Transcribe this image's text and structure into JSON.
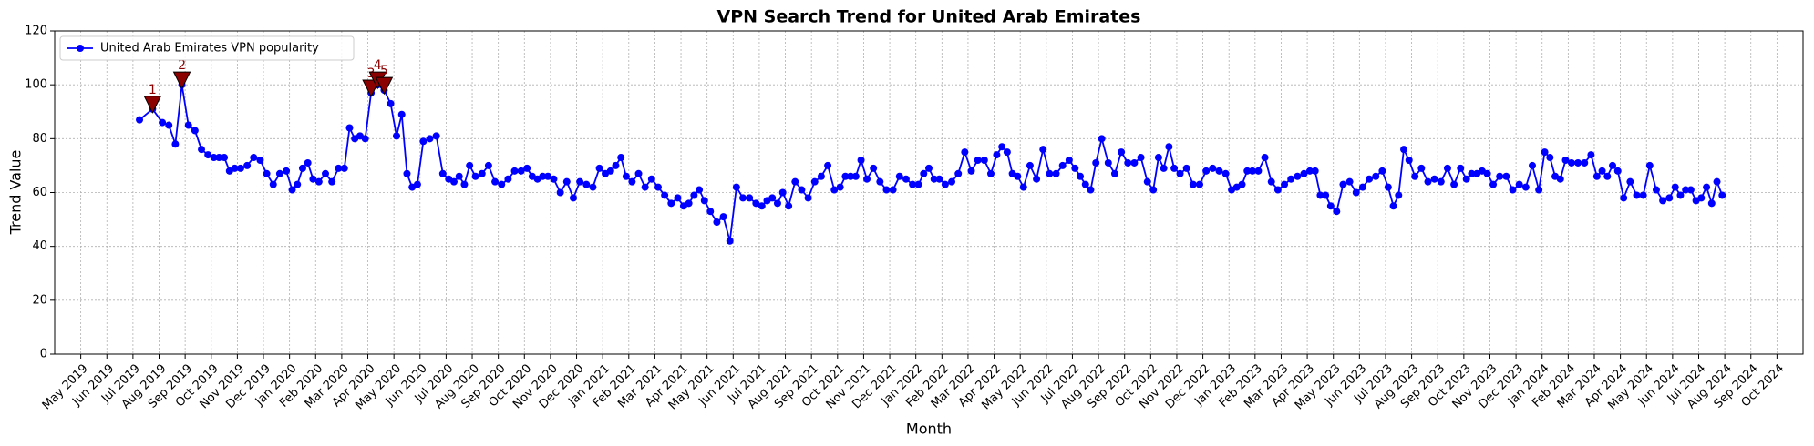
{
  "chart_data": {
    "type": "line",
    "title": "VPN Search Trend for United Arab Emirates",
    "xlabel": "Month",
    "ylabel": "Trend Value",
    "x": [
      "2019-07",
      "2019-07",
      "2019-08",
      "2019-08",
      "2019-08",
      "2019-08",
      "2019-09",
      "2019-09",
      "2019-09",
      "2019-09",
      "2019-10",
      "2019-10",
      "2019-10",
      "2019-10",
      "2019-10",
      "2019-11",
      "2019-11",
      "2019-11",
      "2019-11",
      "2019-12",
      "2019-12",
      "2019-12",
      "2019-12",
      "2020-01",
      "2020-01",
      "2020-01",
      "2020-01",
      "2020-01",
      "2020-02",
      "2020-02",
      "2020-02",
      "2020-02",
      "2020-03",
      "2020-03",
      "2020-03",
      "2020-03",
      "2020-03",
      "2020-04",
      "2020-04",
      "2020-04",
      "2020-04",
      "2020-05",
      "2020-05",
      "2020-05",
      "2020-05",
      "2020-05",
      "2020-06",
      "2020-06",
      "2020-06",
      "2020-06",
      "2020-07",
      "2020-07",
      "2020-07",
      "2020-07",
      "2020-07",
      "2020-08",
      "2020-08",
      "2020-08",
      "2020-08",
      "2020-09",
      "2020-09",
      "2020-09",
      "2020-09",
      "2020-10",
      "2020-10",
      "2020-10",
      "2020-10",
      "2020-10",
      "2020-11",
      "2020-11",
      "2020-11",
      "2020-11",
      "2020-12",
      "2020-12",
      "2020-12",
      "2020-12",
      "2021-01",
      "2021-01",
      "2021-01",
      "2021-01",
      "2021-01",
      "2021-02",
      "2021-02",
      "2021-02",
      "2021-02",
      "2021-03",
      "2021-03",
      "2021-03",
      "2021-03",
      "2021-04",
      "2021-04",
      "2021-04",
      "2021-04",
      "2021-04",
      "2021-05",
      "2021-05",
      "2021-05",
      "2021-05",
      "2021-06",
      "2021-06",
      "2021-06",
      "2021-06",
      "2021-07",
      "2021-07",
      "2021-07",
      "2021-07",
      "2021-07",
      "2021-08",
      "2021-08",
      "2021-08",
      "2021-08",
      "2021-09",
      "2021-09",
      "2021-09",
      "2021-09",
      "2021-10",
      "2021-10",
      "2021-10",
      "2021-10",
      "2021-10",
      "2021-11",
      "2021-11",
      "2021-11",
      "2021-11",
      "2021-12",
      "2021-12",
      "2021-12",
      "2021-12",
      "2022-01",
      "2022-01",
      "2022-01",
      "2022-01",
      "2022-01",
      "2022-02",
      "2022-02",
      "2022-02",
      "2022-02",
      "2022-03",
      "2022-03",
      "2022-03",
      "2022-03",
      "2022-04",
      "2022-04",
      "2022-04",
      "2022-04",
      "2022-04",
      "2022-05",
      "2022-05",
      "2022-05",
      "2022-05",
      "2022-06",
      "2022-06",
      "2022-06",
      "2022-06",
      "2022-07",
      "2022-07",
      "2022-07",
      "2022-07",
      "2022-07",
      "2022-08",
      "2022-08",
      "2022-08",
      "2022-08",
      "2022-09",
      "2022-09",
      "2022-09",
      "2022-09",
      "2022-10",
      "2022-10",
      "2022-10",
      "2022-10",
      "2022-10",
      "2022-11",
      "2022-11",
      "2022-11",
      "2022-11",
      "2022-12",
      "2022-12",
      "2022-12",
      "2022-12",
      "2023-01",
      "2023-01",
      "2023-01",
      "2023-01",
      "2023-01",
      "2023-02",
      "2023-02",
      "2023-02",
      "2023-02",
      "2023-03",
      "2023-03",
      "2023-03",
      "2023-03",
      "2023-04",
      "2023-04",
      "2023-04",
      "2023-04",
      "2023-04",
      "2023-05",
      "2023-05",
      "2023-05",
      "2023-05",
      "2023-06",
      "2023-06",
      "2023-06",
      "2023-06",
      "2023-07",
      "2023-07",
      "2023-07",
      "2023-07",
      "2023-07",
      "2023-08",
      "2023-08",
      "2023-08",
      "2023-08",
      "2023-09",
      "2023-09",
      "2023-09",
      "2023-09",
      "2023-10",
      "2023-10",
      "2023-10",
      "2023-10",
      "2023-10",
      "2023-11",
      "2023-11",
      "2023-11",
      "2023-11",
      "2023-12",
      "2023-12",
      "2023-12",
      "2023-12",
      "2024-01",
      "2024-01",
      "2024-01",
      "2024-01",
      "2024-01",
      "2024-02",
      "2024-02",
      "2024-02",
      "2024-02",
      "2024-03",
      "2024-03",
      "2024-03",
      "2024-03",
      "2024-03",
      "2024-04",
      "2024-04",
      "2024-04",
      "2024-04",
      "2024-05",
      "2024-05",
      "2024-05",
      "2024-05",
      "2024-06",
      "2024-06",
      "2024-06",
      "2024-06",
      "2024-06",
      "2024-07",
      "2024-07",
      "2024-07",
      "2024-07",
      "2024-07"
    ],
    "series": [
      {
        "name": "United Arab Emirates VPN popularity",
        "color": "#0000ff",
        "values": [
          87,
          91,
          86,
          85,
          78,
          100,
          85,
          83,
          76,
          74,
          73,
          73,
          73,
          68,
          69,
          69,
          70,
          73,
          72,
          67,
          63,
          67,
          68,
          61,
          63,
          69,
          71,
          65,
          64,
          67,
          64,
          69,
          69,
          84,
          80,
          81,
          80,
          97,
          100,
          98,
          93,
          81,
          89,
          67,
          62,
          63,
          79,
          80,
          81,
          67,
          65,
          64,
          66,
          63,
          70,
          66,
          67,
          70,
          64,
          63,
          65,
          68,
          68,
          69,
          66,
          65,
          66,
          66,
          65,
          60,
          64,
          58,
          64,
          63,
          62,
          69,
          67,
          68,
          70,
          73,
          66,
          64,
          67,
          62,
          65,
          62,
          59,
          56,
          58,
          55,
          56,
          59,
          61,
          57,
          53,
          49,
          51,
          42,
          62,
          58,
          58,
          56,
          55,
          57,
          58,
          56,
          60,
          55,
          64,
          61,
          58,
          64,
          66,
          70,
          61,
          62,
          66,
          66,
          66,
          72,
          65,
          69,
          64,
          61,
          61,
          66,
          65,
          63,
          63,
          67,
          69,
          65,
          65,
          63,
          64,
          67,
          75,
          68,
          72,
          72,
          67,
          74,
          77,
          75,
          67,
          66,
          62,
          70,
          65,
          76,
          67,
          67,
          70,
          72,
          69,
          66,
          63,
          61,
          71,
          80,
          71,
          67,
          75,
          71,
          71,
          73,
          64,
          61,
          73,
          69,
          77,
          69,
          67,
          69,
          63,
          63,
          68,
          69,
          68,
          67,
          61,
          62,
          63,
          68,
          68,
          68,
          73,
          64,
          61,
          63,
          65,
          66,
          67,
          68,
          68,
          59,
          59,
          55,
          53,
          63,
          64,
          60,
          62,
          65,
          66,
          68,
          62,
          55,
          59,
          76,
          72,
          66,
          69,
          64,
          65,
          64,
          69,
          63,
          69,
          65,
          67,
          67,
          68,
          67,
          63,
          66,
          66,
          61,
          63,
          62,
          70,
          61,
          75,
          73,
          66,
          65,
          72,
          71,
          71,
          71,
          74,
          66,
          68,
          66,
          70,
          68,
          58,
          64,
          59,
          59,
          70,
          61,
          57,
          58,
          62,
          59,
          61,
          61,
          57,
          58,
          62,
          56,
          64,
          59
        ]
      }
    ],
    "annotations": [
      {
        "label": "1",
        "x": "2019-07",
        "y": 91
      },
      {
        "label": "2",
        "x": "2019-08",
        "y": 100
      },
      {
        "label": "3",
        "x": "2020-04",
        "y": 97
      },
      {
        "label": "4",
        "x": "2020-04",
        "y": 100
      },
      {
        "label": "5",
        "x": "2020-04",
        "y": 98
      }
    ],
    "annotation_color": "#8b0000",
    "xlim": [
      "2019-04",
      "2024-11"
    ],
    "xticks": [
      {
        "value": "2019-05",
        "label": "May 2019"
      },
      {
        "value": "2019-06",
        "label": "Jun 2019"
      },
      {
        "value": "2019-07",
        "label": "Jul 2019"
      },
      {
        "value": "2019-08",
        "label": "Aug 2019"
      },
      {
        "value": "2019-09",
        "label": "Sep 2019"
      },
      {
        "value": "2019-10",
        "label": "Oct 2019"
      },
      {
        "value": "2019-11",
        "label": "Nov 2019"
      },
      {
        "value": "2019-12",
        "label": "Dec 2019"
      },
      {
        "value": "2020-01",
        "label": "Jan 2020"
      },
      {
        "value": "2020-02",
        "label": "Feb 2020"
      },
      {
        "value": "2020-03",
        "label": "Mar 2020"
      },
      {
        "value": "2020-04",
        "label": "Apr 2020"
      },
      {
        "value": "2020-05",
        "label": "May 2020"
      },
      {
        "value": "2020-06",
        "label": "Jun 2020"
      },
      {
        "value": "2020-07",
        "label": "Jul 2020"
      },
      {
        "value": "2020-08",
        "label": "Aug 2020"
      },
      {
        "value": "2020-09",
        "label": "Sep 2020"
      },
      {
        "value": "2020-10",
        "label": "Oct 2020"
      },
      {
        "value": "2020-11",
        "label": "Nov 2020"
      },
      {
        "value": "2020-12",
        "label": "Dec 2020"
      },
      {
        "value": "2021-01",
        "label": "Jan 2021"
      },
      {
        "value": "2021-02",
        "label": "Feb 2021"
      },
      {
        "value": "2021-03",
        "label": "Mar 2021"
      },
      {
        "value": "2021-04",
        "label": "Apr 2021"
      },
      {
        "value": "2021-05",
        "label": "May 2021"
      },
      {
        "value": "2021-06",
        "label": "Jun 2021"
      },
      {
        "value": "2021-07",
        "label": "Jul 2021"
      },
      {
        "value": "2021-08",
        "label": "Aug 2021"
      },
      {
        "value": "2021-09",
        "label": "Sep 2021"
      },
      {
        "value": "2021-10",
        "label": "Oct 2021"
      },
      {
        "value": "2021-11",
        "label": "Nov 2021"
      },
      {
        "value": "2021-12",
        "label": "Dec 2021"
      },
      {
        "value": "2022-01",
        "label": "Jan 2022"
      },
      {
        "value": "2022-02",
        "label": "Feb 2022"
      },
      {
        "value": "2022-03",
        "label": "Mar 2022"
      },
      {
        "value": "2022-04",
        "label": "Apr 2022"
      },
      {
        "value": "2022-05",
        "label": "May 2022"
      },
      {
        "value": "2022-06",
        "label": "Jun 2022"
      },
      {
        "value": "2022-07",
        "label": "Jul 2022"
      },
      {
        "value": "2022-08",
        "label": "Aug 2022"
      },
      {
        "value": "2022-09",
        "label": "Sep 2022"
      },
      {
        "value": "2022-10",
        "label": "Oct 2022"
      },
      {
        "value": "2022-11",
        "label": "Nov 2022"
      },
      {
        "value": "2022-12",
        "label": "Dec 2022"
      },
      {
        "value": "2023-01",
        "label": "Jan 2023"
      },
      {
        "value": "2023-02",
        "label": "Feb 2023"
      },
      {
        "value": "2023-03",
        "label": "Mar 2023"
      },
      {
        "value": "2023-04",
        "label": "Apr 2023"
      },
      {
        "value": "2023-05",
        "label": "May 2023"
      },
      {
        "value": "2023-06",
        "label": "Jun 2023"
      },
      {
        "value": "2023-07",
        "label": "Jul 2023"
      },
      {
        "value": "2023-08",
        "label": "Aug 2023"
      },
      {
        "value": "2023-09",
        "label": "Sep 2023"
      },
      {
        "value": "2023-10",
        "label": "Oct 2023"
      },
      {
        "value": "2023-11",
        "label": "Nov 2023"
      },
      {
        "value": "2023-12",
        "label": "Dec 2023"
      },
      {
        "value": "2024-01",
        "label": "Jan 2024"
      },
      {
        "value": "2024-02",
        "label": "Feb 2024"
      },
      {
        "value": "2024-03",
        "label": "Mar 2024"
      },
      {
        "value": "2024-04",
        "label": "Apr 2024"
      },
      {
        "value": "2024-05",
        "label": "May 2024"
      },
      {
        "value": "2024-06",
        "label": "Jun 2024"
      },
      {
        "value": "2024-07",
        "label": "Jul 2024"
      },
      {
        "value": "2024-08",
        "label": "Aug 2024"
      },
      {
        "value": "2024-09",
        "label": "Sep 2024"
      },
      {
        "value": "2024-10",
        "label": "Oct 2024"
      }
    ],
    "ylim": [
      0,
      120
    ],
    "yticks": [
      0,
      20,
      40,
      60,
      80,
      100,
      120
    ],
    "grid": true,
    "legend": "upper left"
  }
}
